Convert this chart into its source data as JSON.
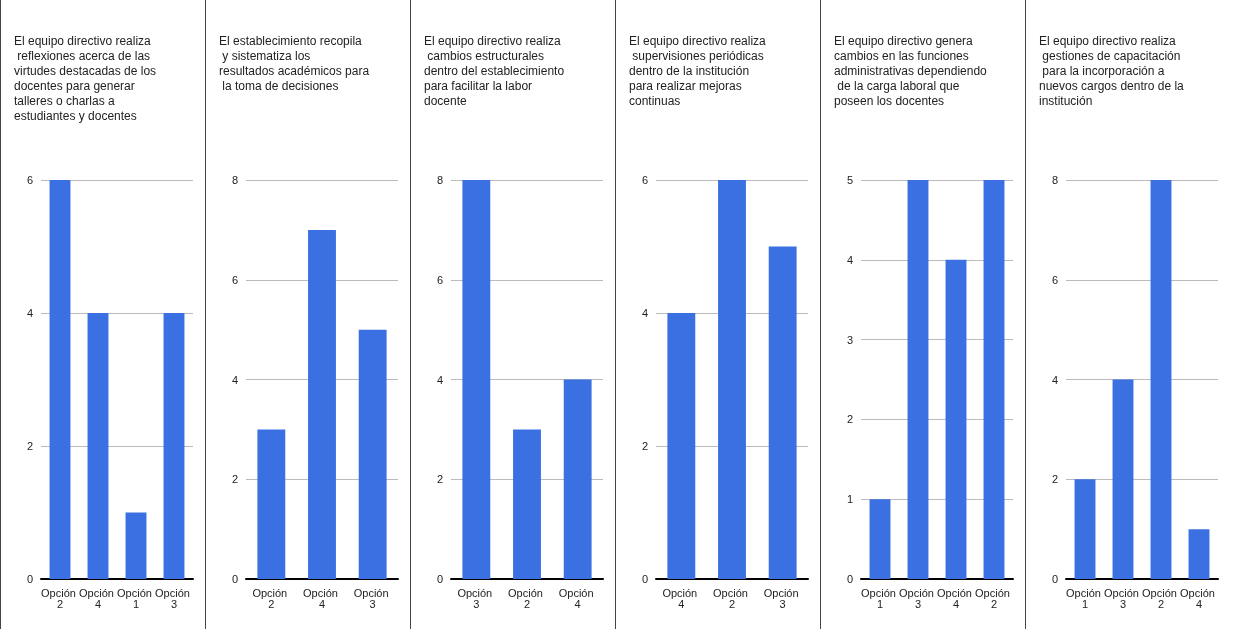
{
  "chart_data": [
    {
      "type": "bar",
      "title": "El equipo directivo realiza reflexiones acerca de las virtudes destacadas de los docentes para generar talleres o charlas a estudiantes y docentes",
      "categories": [
        "Opción 2",
        "Opción 4",
        "Opción 1",
        "Opción 3"
      ],
      "values": [
        6,
        4,
        1,
        4
      ],
      "color": "#3b70e2",
      "ylim": [
        0,
        6
      ],
      "yticks": [
        0,
        2,
        4,
        6
      ],
      "grid": "y"
    },
    {
      "type": "bar",
      "title": "El establecimiento recopila y sistematiza los resultados académicos para la toma de decisiones",
      "categories": [
        "Opción 2",
        "Opción 4",
        "Opción 3"
      ],
      "values": [
        3,
        7,
        5
      ],
      "color": "#3b70e2",
      "ylim": [
        0,
        8
      ],
      "yticks": [
        0,
        2,
        4,
        6,
        8
      ],
      "grid": "y"
    },
    {
      "type": "bar",
      "title": "El equipo directivo realiza cambios estructurales dentro del establecimiento para facilitar la labor docente",
      "categories": [
        "Opción 3",
        "Opción 2",
        "Opción 4"
      ],
      "values": [
        8,
        3,
        4
      ],
      "color": "#3b70e2",
      "ylim": [
        0,
        8
      ],
      "yticks": [
        0,
        2,
        4,
        6,
        8
      ],
      "grid": "y"
    },
    {
      "type": "bar",
      "title": "El equipo directivo realiza supervisiones periódicas dentro de la institución para realizar mejoras continuas",
      "categories": [
        "Opción 4",
        "Opción 2",
        "Opción 3"
      ],
      "values": [
        4,
        6,
        5
      ],
      "color": "#3b70e2",
      "ylim": [
        0,
        6
      ],
      "yticks": [
        0,
        2,
        4,
        6
      ],
      "grid": "y"
    },
    {
      "type": "bar",
      "title": "El equipo directivo genera cambios en las funciones administrativas dependiendo de la carga laboral que poseen los docentes",
      "categories": [
        "Opción 1",
        "Opción 3",
        "Opción 4",
        "Opción 2"
      ],
      "values": [
        1,
        5,
        4,
        5
      ],
      "color": "#3b70e2",
      "ylim": [
        0,
        5
      ],
      "yticks": [
        0,
        1,
        2,
        3,
        4,
        5
      ],
      "grid": "y"
    },
    {
      "type": "bar",
      "title": "El equipo directivo realiza gestiones de capacitación para la incorporación a nuevos cargos dentro de la institución",
      "categories": [
        "Opción 1",
        "Opción 3",
        "Opción 2",
        "Opción 4"
      ],
      "values": [
        2,
        4,
        8,
        1
      ],
      "color": "#3b70e2",
      "ylim": [
        0,
        8
      ],
      "yticks": [
        0,
        2,
        4,
        6,
        8
      ],
      "grid": "y"
    }
  ]
}
